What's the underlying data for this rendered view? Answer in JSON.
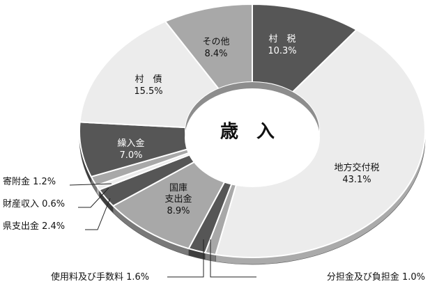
{
  "chart_data": {
    "type": "pie",
    "title": "歳　入",
    "unit": "%",
    "slices": [
      {
        "name": "村　税",
        "value": 10.3,
        "value_label": "10.3%",
        "color": "#565656"
      },
      {
        "name": "地方交付税",
        "value": 43.1,
        "value_label": "43.1%",
        "color": "#ececec"
      },
      {
        "name": "分担金及び負担金",
        "value": 1.0,
        "value_label": "1.0%",
        "color": "#a8a8a8"
      },
      {
        "name": "使用料及び手数料",
        "value": 1.6,
        "value_label": "1.6%",
        "color": "#565656"
      },
      {
        "name": "国庫\n支出金",
        "value": 8.9,
        "value_label": "8.9%",
        "color": "#a8a8a8"
      },
      {
        "name": "県支出金",
        "value": 2.4,
        "value_label": "2.4%",
        "color": "#565656"
      },
      {
        "name": "財産収入",
        "value": 0.6,
        "value_label": "0.6%",
        "color": "#ececec"
      },
      {
        "name": "寄附金",
        "value": 1.2,
        "value_label": "1.2%",
        "color": "#a8a8a8"
      },
      {
        "name": "繰入金",
        "value": 7.0,
        "value_label": "7.0%",
        "color": "#565656"
      },
      {
        "name": "村　債",
        "value": 15.5,
        "value_label": "15.5%",
        "color": "#ececec"
      },
      {
        "name": "その他",
        "value": 8.4,
        "value_label": "8.4%",
        "color": "#a8a8a8"
      }
    ]
  }
}
